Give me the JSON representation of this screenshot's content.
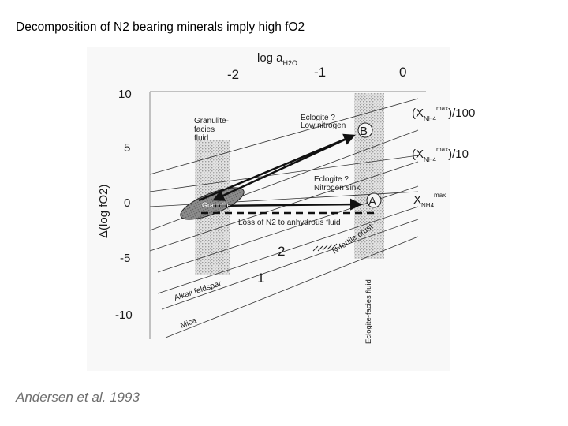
{
  "title": "Decomposition of N2 bearing minerals imply high fO2",
  "citation": "Andersen et al. 1993",
  "diagram": {
    "top_axis": {
      "label_main": "log a",
      "label_sub": "H2O",
      "ticks": [
        "-2",
        "-1",
        "0"
      ]
    },
    "left_axis": {
      "label": "Δ(log fO2)",
      "ticks": [
        "10",
        "5",
        "0",
        "-5",
        "-10"
      ]
    },
    "right_labels": {
      "r1_main": "(X",
      "r1_sub": "NH4",
      "r1_sup": "max",
      "r1_tail": ")/100",
      "r2_main": "(X",
      "r2_sub": "NH4",
      "r2_sup": "max",
      "r2_tail": ")/10",
      "r3_main": "X",
      "r3_sub": "NH4",
      "r3_sup": "max"
    },
    "regions": {
      "granulite_fluid_line1": "Granulite-",
      "granulite_fluid_line2": "facies",
      "granulite_fluid_line3": "fluid",
      "eclogite_fluid": "Eclogite-facies fluid"
    },
    "annotations": {
      "eclogite_low_n_line1": "Eclogite ?",
      "eclogite_low_n_line2": "Low nitrogen",
      "eclogite_sink_line1": "Eclogite ?",
      "eclogite_sink_line2": "Nitrogen sink",
      "granulite": "Granulite",
      "loss_n2": "Loss of N2 to anhydrous fluid",
      "n_fertile_crust": "N-fertile crust",
      "alkali_feldspar": "Alkali feldspar",
      "mica": "Mica",
      "point_a": "A",
      "point_b": "B",
      "curve_1": "1",
      "curve_2": "2"
    }
  }
}
